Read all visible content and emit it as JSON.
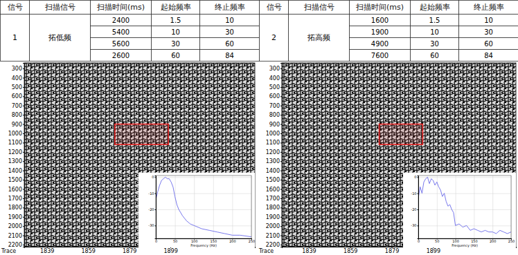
{
  "table": {
    "columns": [
      "信号",
      "扫描信号",
      "扫描时间(ms)",
      "起始频率",
      "终止频率"
    ],
    "groups": [
      {
        "id": 1,
        "signal": "拓低频",
        "rows": [
          [
            2400,
            1.5,
            10
          ],
          [
            5400,
            10,
            30
          ],
          [
            5600,
            30,
            60
          ],
          [
            2600,
            60,
            84
          ]
        ]
      },
      {
        "id": 2,
        "signal": "拓高频",
        "rows": [
          [
            1600,
            1.5,
            10
          ],
          [
            1900,
            10,
            30
          ],
          [
            4900,
            30,
            60
          ],
          [
            7600,
            60,
            84
          ]
        ]
      }
    ]
  },
  "chart_data": [
    {
      "type": "seismic",
      "x_label": "Trace",
      "xlim": [
        1828,
        1940
      ],
      "xticks": [
        1839,
        1859,
        1879,
        1899
      ],
      "ylim": [
        240,
        2222
      ],
      "yticks": [
        300,
        400,
        500,
        600,
        700,
        800,
        900,
        1000,
        1100,
        1200,
        1300,
        1400,
        1500,
        1600,
        1700,
        1800,
        1900,
        2000,
        2100,
        2200
      ],
      "box": {
        "x": [
          1872,
          1898
        ],
        "y": [
          900,
          1120
        ]
      },
      "color": "#e02020"
    },
    {
      "type": "line",
      "x_label": "Frequency (Hz)",
      "color": "#6b6bea",
      "grid": true,
      "x": [
        0,
        5,
        10,
        15,
        20,
        25,
        30,
        35,
        40,
        45,
        50,
        55,
        60,
        70,
        80,
        90,
        100,
        120,
        140,
        160,
        180,
        200,
        220,
        250
      ],
      "values": [
        -14,
        -9,
        -5,
        -2,
        -1,
        0,
        -1,
        -1,
        -3,
        -6,
        -12,
        -17,
        -20,
        -24,
        -27,
        -29,
        -30,
        -32,
        -33,
        -34,
        -35,
        -36,
        -36,
        -37
      ],
      "xlim": [
        0,
        250
      ],
      "xticks": [
        0,
        50,
        100,
        150,
        200,
        250
      ],
      "ylim": [
        -38,
        1
      ],
      "yticks": [
        0,
        -10,
        -20,
        -30
      ]
    },
    {
      "type": "seismic",
      "x_label": "Trace",
      "xlim": [
        1826,
        1939
      ],
      "xticks": [
        1839,
        1859,
        1879,
        1899
      ],
      "ylim": [
        240,
        2222
      ],
      "yticks": [
        300,
        400,
        500,
        600,
        700,
        800,
        900,
        1000,
        1100,
        1200,
        1300,
        1400,
        1500,
        1600,
        1700,
        1800,
        1900,
        2000,
        2100,
        2200
      ],
      "box": {
        "x": [
          1873,
          1894
        ],
        "y": [
          900,
          1120
        ]
      },
      "color": "#e02020"
    },
    {
      "type": "line",
      "x_label": "Frequency (Hz)",
      "color": "#6b6bea",
      "grid": true,
      "x": [
        0,
        5,
        10,
        15,
        20,
        25,
        30,
        35,
        40,
        45,
        50,
        55,
        60,
        65,
        70,
        75,
        80,
        85,
        90,
        95,
        100,
        110,
        120,
        130,
        140,
        150,
        160,
        170,
        180,
        190,
        200,
        210,
        220,
        230,
        240,
        250
      ],
      "values": [
        -13,
        -6,
        -10,
        -3,
        -1,
        0,
        -4,
        -1,
        -2,
        -5,
        -3,
        -6,
        -8,
        -12,
        -10,
        -15,
        -18,
        -17,
        -20,
        -22,
        -30,
        -29,
        -31,
        -30,
        -33,
        -32,
        -33,
        -34,
        -33,
        -34,
        -34,
        -35,
        -33,
        -34,
        -35,
        -34
      ],
      "xlim": [
        0,
        250
      ],
      "xticks": [
        0,
        50,
        100,
        150,
        200,
        250
      ],
      "ylim": [
        -38,
        1
      ],
      "yticks": [
        0,
        -10,
        -20,
        -30
      ]
    }
  ]
}
